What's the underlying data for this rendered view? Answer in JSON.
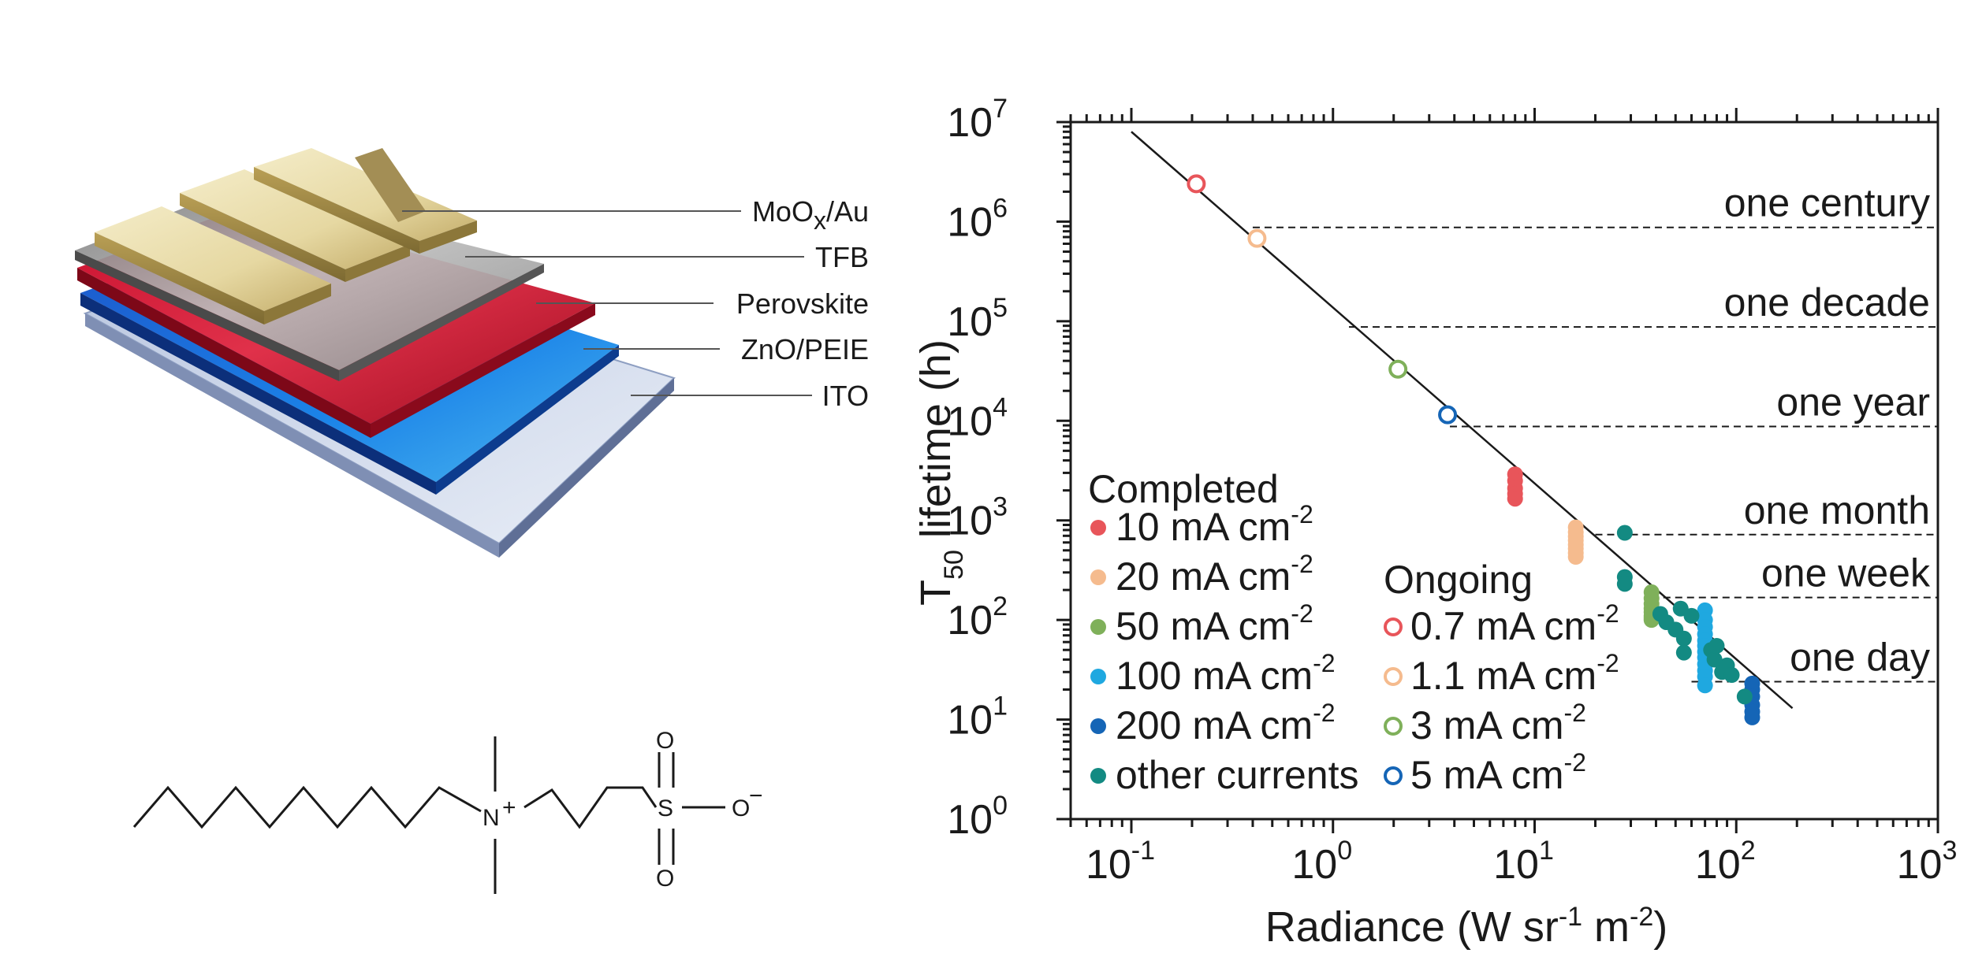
{
  "device": {
    "layers": [
      {
        "name": "MoO",
        "sub": "x",
        "suffix": "/Au"
      },
      {
        "name": "TFB",
        "sub": "",
        "suffix": ""
      },
      {
        "name": "Perovskite",
        "sub": "",
        "suffix": ""
      },
      {
        "name": "ZnO/PEIE",
        "sub": "",
        "suffix": ""
      },
      {
        "name": "ITO",
        "sub": "",
        "suffix": ""
      }
    ]
  },
  "molecule": {
    "nitrogen": "N",
    "nitrogen_charge": "+",
    "sulfur": "S",
    "oxygen_top": "O",
    "oxygen_bottom": "O",
    "oxygen_right": "O",
    "oxygen_right_charge": "−"
  },
  "chart_data": {
    "type": "scatter",
    "xscale": "log",
    "yscale": "log",
    "xlim": [
      0.05,
      1000
    ],
    "ylim": [
      1,
      10000000
    ],
    "x_ticks": [
      {
        "base": "10",
        "exp": "-1",
        "value": 0.1
      },
      {
        "base": "10",
        "exp": "0",
        "value": 1
      },
      {
        "base": "10",
        "exp": "1",
        "value": 10
      },
      {
        "base": "10",
        "exp": "2",
        "value": 100
      },
      {
        "base": "10",
        "exp": "3",
        "value": 1000
      }
    ],
    "y_ticks": [
      {
        "base": "10",
        "exp": "0",
        "value": 1
      },
      {
        "base": "10",
        "exp": "1",
        "value": 10
      },
      {
        "base": "10",
        "exp": "2",
        "value": 100
      },
      {
        "base": "10",
        "exp": "3",
        "value": 1000
      },
      {
        "base": "10",
        "exp": "4",
        "value": 10000
      },
      {
        "base": "10",
        "exp": "5",
        "value": 100000
      },
      {
        "base": "10",
        "exp": "6",
        "value": 1000000
      },
      {
        "base": "10",
        "exp": "7",
        "value": 10000000
      }
    ],
    "xlabel": {
      "pre": "Radiance (W sr",
      "e1": "-1",
      "mid": " m",
      "e2": "-2",
      "post": ")"
    },
    "ylabel": {
      "t": "T",
      "sub": "50",
      "rest": " lifetime (h)"
    },
    "reference_levels": [
      {
        "label": "one century",
        "hours": 876000,
        "from_x": 0.4
      },
      {
        "label": "one decade",
        "hours": 87600,
        "from_x": 1.2
      },
      {
        "label": "one year",
        "hours": 8760,
        "from_x": 3.8
      },
      {
        "label": "one month",
        "hours": 720,
        "from_x": 20
      },
      {
        "label": "one week",
        "hours": 168,
        "from_x": 38
      },
      {
        "label": "one day",
        "hours": 24,
        "from_x": 60
      }
    ],
    "fit_line": {
      "x": [
        0.1,
        190
      ],
      "y": [
        8000000,
        13
      ]
    },
    "legend_completed_title": "Completed",
    "legend_ongoing_title": "Ongoing",
    "series": [
      {
        "name": "10 mA cm",
        "exp": "-2",
        "group": "completed",
        "color": "#e8555a",
        "marker": "filled",
        "points": [
          [
            8,
            2900
          ],
          [
            8,
            2500
          ],
          [
            8,
            2100
          ],
          [
            8,
            1850
          ],
          [
            8,
            1650
          ]
        ]
      },
      {
        "name": "20 mA cm",
        "exp": "-2",
        "group": "completed",
        "color": "#f5bb8e",
        "marker": "filled",
        "points": [
          [
            16,
            850
          ],
          [
            16,
            760
          ],
          [
            16,
            690
          ],
          [
            16,
            630
          ],
          [
            16,
            570
          ],
          [
            16,
            520
          ],
          [
            16,
            470
          ],
          [
            16,
            430
          ]
        ]
      },
      {
        "name": "50 mA cm",
        "exp": "-2",
        "group": "completed",
        "color": "#7fb05a",
        "marker": "filled",
        "points": [
          [
            38,
            190
          ],
          [
            38,
            165
          ],
          [
            38,
            145
          ],
          [
            38,
            130
          ],
          [
            38,
            120
          ],
          [
            38,
            110
          ],
          [
            38,
            105
          ],
          [
            38,
            100
          ]
        ]
      },
      {
        "name": "100 mA cm",
        "exp": "-2",
        "group": "completed",
        "color": "#1fa8e0",
        "marker": "filled",
        "points": [
          [
            70,
            125
          ],
          [
            70,
            100
          ],
          [
            70,
            85
          ],
          [
            70,
            72
          ],
          [
            70,
            62
          ],
          [
            70,
            55
          ],
          [
            70,
            48
          ],
          [
            70,
            42
          ],
          [
            70,
            36
          ],
          [
            70,
            31
          ],
          [
            70,
            27
          ],
          [
            70,
            22
          ]
        ]
      },
      {
        "name": "200 mA cm",
        "exp": "-2",
        "group": "completed",
        "color": "#1565b6",
        "marker": "filled",
        "points": [
          [
            120,
            23
          ],
          [
            120,
            20
          ],
          [
            120,
            17
          ],
          [
            120,
            14
          ],
          [
            120,
            12
          ],
          [
            120,
            10.5
          ]
        ]
      },
      {
        "name": "other currents",
        "exp": "",
        "group": "completed",
        "color": "#138a82",
        "marker": "filled",
        "points": [
          [
            28,
            750
          ],
          [
            28,
            270
          ],
          [
            28,
            230
          ],
          [
            42,
            115
          ],
          [
            45,
            95
          ],
          [
            50,
            80
          ],
          [
            53,
            130
          ],
          [
            55,
            65
          ],
          [
            55,
            47
          ],
          [
            60,
            110
          ],
          [
            75,
            50
          ],
          [
            78,
            40
          ],
          [
            80,
            55
          ],
          [
            85,
            30
          ],
          [
            90,
            35
          ],
          [
            95,
            28
          ],
          [
            110,
            17
          ]
        ]
      },
      {
        "name": "0.7 mA cm",
        "exp": "-2",
        "group": "ongoing",
        "color": "#e8555a",
        "marker": "open",
        "points": [
          [
            0.21,
            2400000
          ]
        ]
      },
      {
        "name": "1.1 mA cm",
        "exp": "-2",
        "group": "ongoing",
        "color": "#f5bb8e",
        "marker": "open",
        "points": [
          [
            0.42,
            680000
          ]
        ]
      },
      {
        "name": "3 mA cm",
        "exp": "-2",
        "group": "ongoing",
        "color": "#7fb05a",
        "marker": "open",
        "points": [
          [
            2.1,
            33000
          ]
        ]
      },
      {
        "name": "5 mA cm",
        "exp": "-2",
        "group": "ongoing",
        "color": "#1565b6",
        "marker": "open",
        "points": [
          [
            3.7,
            11500
          ]
        ]
      }
    ]
  }
}
